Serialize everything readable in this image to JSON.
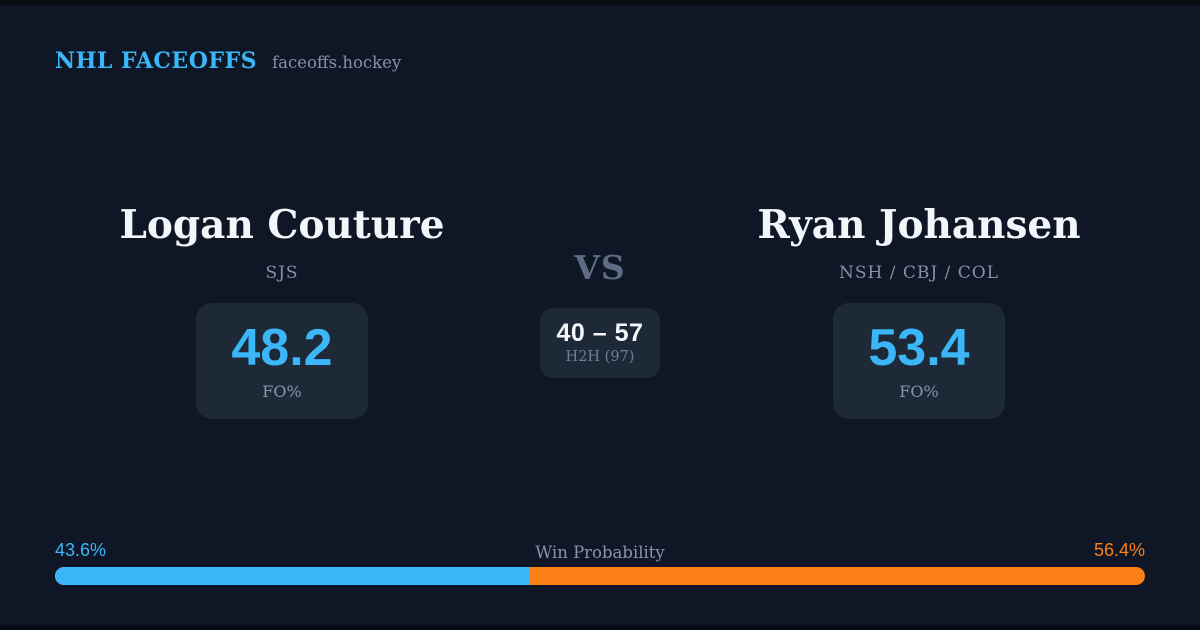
{
  "header": {
    "brand": "NHL FACEOFFS",
    "site": "faceoffs.hockey"
  },
  "left_player": {
    "name": "Logan Couture",
    "teams": "SJS",
    "fo_value": "48.2",
    "fo_label": "FO%"
  },
  "right_player": {
    "name": "Ryan Johansen",
    "teams": "NSH / CBJ / COL",
    "fo_value": "53.4",
    "fo_label": "FO%"
  },
  "matchup": {
    "vs": "VS",
    "h2h_score": "40 – 57",
    "h2h_label": "H2H (97)"
  },
  "win_probability": {
    "label": "Win Probability",
    "left_label": "43.6%",
    "right_label": "56.4%",
    "left_pct": 43.6,
    "right_pct": 56.4
  },
  "colors": {
    "background": "#0f1726",
    "panel": "#1e2938",
    "accent_blue": "#3bb6f6",
    "accent_orange": "#f97f16",
    "text_primary": "#f2f5f9",
    "text_muted": "#8791a3"
  }
}
